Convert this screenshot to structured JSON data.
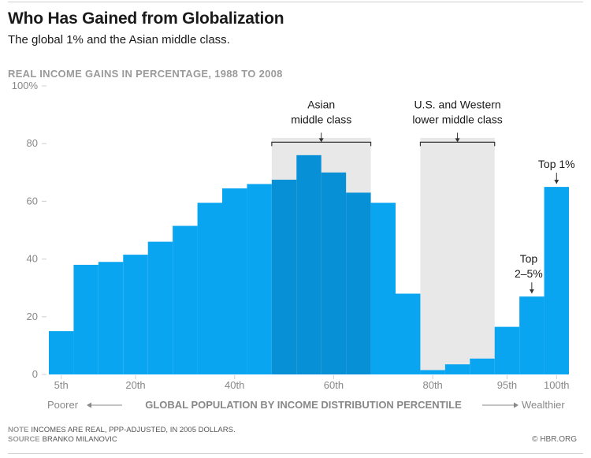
{
  "header": {
    "title": "Who Has Gained from Globalization",
    "subtitle": "The global 1% and the Asian middle class."
  },
  "footer": {
    "note_label": "NOTE",
    "note_text": "INCOMES ARE REAL, PPP-ADJUSTED, IN 2005 DOLLARS.",
    "source_label": "SOURCE",
    "source_text": "BRANKO MILANOVIC",
    "credit": "© HBR.ORG"
  },
  "colors": {
    "bar": "#0aa5f0",
    "bar_highlight": "#0790d6",
    "band": "#e8e8e8",
    "axis_text": "#888888",
    "grid": "#cfcfcf"
  },
  "chart_data": {
    "type": "bar",
    "title": "Who Has Gained from Globalization",
    "ylabel": "REAL INCOME GAINS IN PERCENTAGE, 1988 TO 2008",
    "xlabel": "GLOBAL POPULATION BY INCOME DISTRIBUTION PERCENTILE",
    "ylim": [
      0,
      100
    ],
    "yticks": [
      0,
      20,
      40,
      60,
      80,
      100
    ],
    "ytick_labels": [
      "0",
      "20",
      "40",
      "60",
      "80",
      "100%"
    ],
    "xticks": [
      {
        "index": 0,
        "label": "5th"
      },
      {
        "index": 3,
        "label": "20th"
      },
      {
        "index": 7,
        "label": "40th"
      },
      {
        "index": 11,
        "label": "60th"
      },
      {
        "index": 15,
        "label": "80th"
      },
      {
        "index": 18,
        "label": "95th"
      },
      {
        "index": 20,
        "label": "100th"
      }
    ],
    "x_left_label": "Poorer",
    "x_right_label": "Wealthier",
    "bars": [
      {
        "percentile": "5th",
        "value": 15
      },
      {
        "percentile": "10th",
        "value": 38
      },
      {
        "percentile": "15th",
        "value": 39
      },
      {
        "percentile": "20th",
        "value": 41.5
      },
      {
        "percentile": "25th",
        "value": 46
      },
      {
        "percentile": "30th",
        "value": 51.5
      },
      {
        "percentile": "35th",
        "value": 59.5
      },
      {
        "percentile": "40th",
        "value": 64.5
      },
      {
        "percentile": "45th",
        "value": 66
      },
      {
        "percentile": "50th",
        "value": 67.5
      },
      {
        "percentile": "55th",
        "value": 76
      },
      {
        "percentile": "60th",
        "value": 70
      },
      {
        "percentile": "65th",
        "value": 63
      },
      {
        "percentile": "70th",
        "value": 59.5
      },
      {
        "percentile": "75th",
        "value": 28
      },
      {
        "percentile": "80th",
        "value": 1.5
      },
      {
        "percentile": "85th",
        "value": 3.5
      },
      {
        "percentile": "90th",
        "value": 5.5
      },
      {
        "percentile": "95th",
        "value": 16.5
      },
      {
        "percentile": "99th",
        "value": 27
      },
      {
        "percentile": "100th",
        "value": 65
      }
    ],
    "highlight_range": [
      9,
      12
    ],
    "bands": [
      {
        "name": "asian-middle-class",
        "label_lines": [
          "Asian",
          "middle class"
        ],
        "start": 9,
        "end": 12
      },
      {
        "name": "western-lower-middle-class",
        "label_lines": [
          "U.S. and Western",
          "lower middle class"
        ],
        "start": 15,
        "end": 17
      }
    ],
    "annotations": [
      {
        "name": "top-2-5-percent",
        "bar_index": 19,
        "label_lines": [
          "Top",
          "2–5%"
        ]
      },
      {
        "name": "top-1-percent",
        "bar_index": 20,
        "label_lines": [
          "Top 1%"
        ]
      }
    ]
  }
}
